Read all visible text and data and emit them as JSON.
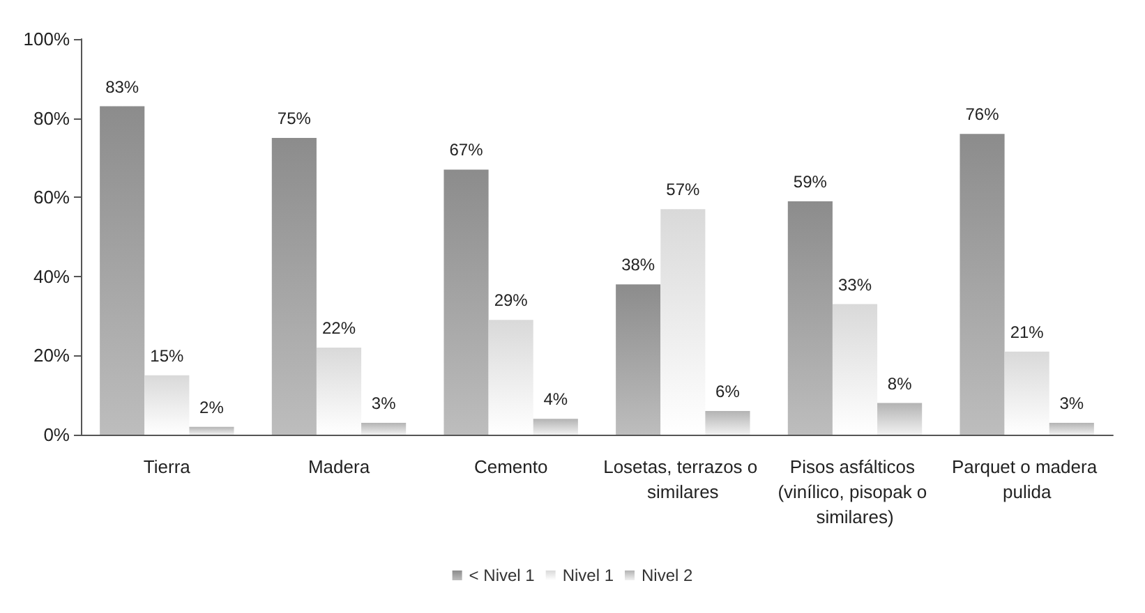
{
  "chart_data": {
    "type": "bar",
    "categories": [
      "Tierra",
      "Madera",
      "Cemento",
      "Losetas, terrazos o similares",
      "Pisos asfálticos (vinílico, pisopak o similares)",
      "Parquet o madera pulida"
    ],
    "series": [
      {
        "name": "< Nivel 1",
        "color": "#8c8c8c",
        "values": [
          83,
          75,
          67,
          38,
          59,
          76
        ],
        "value_labels": [
          "83%",
          "75%",
          "67%",
          "38%",
          "59%",
          "76%"
        ]
      },
      {
        "name": "Nivel 1",
        "color": "#d9d9d9",
        "values": [
          15,
          22,
          29,
          57,
          33,
          21
        ],
        "value_labels": [
          "15%",
          "22%",
          "29%",
          "57%",
          "33%",
          "21%"
        ]
      },
      {
        "name": "Nivel 2",
        "color": "#b3b3b3",
        "values": [
          2,
          3,
          4,
          6,
          8,
          3
        ],
        "value_labels": [
          "2%",
          "3%",
          "4%",
          "6%",
          "8%",
          "3%"
        ]
      }
    ],
    "ylim": [
      0,
      100
    ],
    "yticks": [
      {
        "value": 0,
        "label": "0%"
      },
      {
        "value": 20,
        "label": "20%"
      },
      {
        "value": 40,
        "label": "40%"
      },
      {
        "value": 60,
        "label": "60%"
      },
      {
        "value": 80,
        "label": "80%"
      },
      {
        "value": 100,
        "label": "100%"
      }
    ],
    "grid": false,
    "legend": "bottom"
  }
}
